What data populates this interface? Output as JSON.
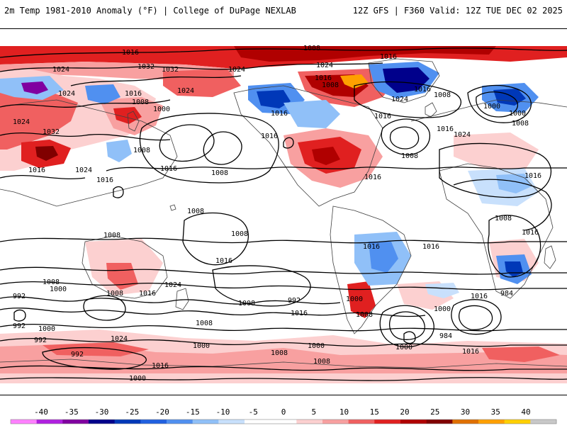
{
  "header": {
    "left": "2m Temp 1981-2010 Anomaly (°F) | College of DuPage NEXLAB",
    "right": "12Z GFS | F360 Valid: 12Z TUE DEC 02 2025"
  },
  "isobar_labels": [
    {
      "id": "iso-1",
      "text": "1016"
    },
    {
      "id": "iso-2",
      "text": "1008"
    },
    {
      "id": "iso-3",
      "text": "1016"
    },
    {
      "id": "iso-4",
      "text": "1024"
    },
    {
      "id": "iso-5",
      "text": "1032"
    },
    {
      "id": "iso-6",
      "text": "1032"
    },
    {
      "id": "iso-7",
      "text": "1024"
    },
    {
      "id": "iso-8",
      "text": "1024"
    },
    {
      "id": "iso-9",
      "text": "1016"
    },
    {
      "id": "iso-10",
      "text": "1008"
    },
    {
      "id": "iso-11",
      "text": "1000"
    },
    {
      "id": "iso-12",
      "text": "1024"
    },
    {
      "id": "iso-13",
      "text": "1024"
    },
    {
      "id": "iso-14",
      "text": "1016"
    },
    {
      "id": "iso-15",
      "text": "1008"
    },
    {
      "id": "iso-16",
      "text": "1016"
    },
    {
      "id": "iso-17",
      "text": "1024"
    },
    {
      "id": "iso-18",
      "text": "1032"
    },
    {
      "id": "iso-19",
      "text": "1024"
    },
    {
      "id": "iso-20",
      "text": "1008"
    },
    {
      "id": "iso-21",
      "text": "1016"
    },
    {
      "id": "iso-22",
      "text": "1024"
    },
    {
      "id": "iso-23",
      "text": "1016"
    },
    {
      "id": "iso-24",
      "text": "1008"
    },
    {
      "id": "iso-25",
      "text": "1016"
    },
    {
      "id": "iso-26",
      "text": "1016"
    },
    {
      "id": "iso-27",
      "text": "1016"
    },
    {
      "id": "iso-28",
      "text": "1024"
    },
    {
      "id": "iso-29",
      "text": "1016"
    },
    {
      "id": "iso-30",
      "text": "1008"
    },
    {
      "id": "iso-31",
      "text": "1016"
    },
    {
      "id": "iso-32",
      "text": "1008"
    },
    {
      "id": "iso-33",
      "text": "1016"
    },
    {
      "id": "iso-34",
      "text": "1000"
    },
    {
      "id": "iso-35",
      "text": "1000"
    },
    {
      "id": "iso-36",
      "text": "1008"
    },
    {
      "id": "iso-37",
      "text": "1016"
    },
    {
      "id": "iso-38",
      "text": "1008"
    },
    {
      "id": "iso-39",
      "text": "1008"
    },
    {
      "id": "iso-40",
      "text": "1008"
    },
    {
      "id": "iso-41",
      "text": "1008"
    },
    {
      "id": "iso-42",
      "text": "1016"
    },
    {
      "id": "iso-43",
      "text": "1016"
    },
    {
      "id": "iso-44",
      "text": "1016"
    },
    {
      "id": "iso-45",
      "text": "1016"
    },
    {
      "id": "iso-46",
      "text": "1008"
    },
    {
      "id": "iso-47",
      "text": "1000"
    },
    {
      "id": "iso-48",
      "text": "992"
    },
    {
      "id": "iso-49",
      "text": "1008"
    },
    {
      "id": "iso-50",
      "text": "1016"
    },
    {
      "id": "iso-51",
      "text": "1024"
    },
    {
      "id": "iso-52",
      "text": "1008"
    },
    {
      "id": "iso-53",
      "text": "992"
    },
    {
      "id": "iso-54",
      "text": "1016"
    },
    {
      "id": "iso-55",
      "text": "1000"
    },
    {
      "id": "iso-56",
      "text": "1008"
    },
    {
      "id": "iso-57",
      "text": "1000"
    },
    {
      "id": "iso-58",
      "text": "1016"
    },
    {
      "id": "iso-59",
      "text": "984"
    },
    {
      "id": "iso-60",
      "text": "992"
    },
    {
      "id": "iso-61",
      "text": "1000"
    },
    {
      "id": "iso-62",
      "text": "992"
    },
    {
      "id": "iso-63",
      "text": "1000"
    },
    {
      "id": "iso-64",
      "text": "1008"
    },
    {
      "id": "iso-65",
      "text": "1024"
    },
    {
      "id": "iso-66",
      "text": "992"
    },
    {
      "id": "iso-67",
      "text": "1000"
    },
    {
      "id": "iso-68",
      "text": "984"
    },
    {
      "id": "iso-69",
      "text": "1000"
    },
    {
      "id": "iso-70",
      "text": "1008"
    },
    {
      "id": "iso-71",
      "text": "1008"
    },
    {
      "id": "iso-72",
      "text": "1016"
    },
    {
      "id": "iso-73",
      "text": "1000"
    },
    {
      "id": "iso-74",
      "text": "1016"
    }
  ],
  "colorbar": {
    "tick_labels": [
      "-40",
      "-35",
      "-30",
      "-25",
      "-20",
      "-15",
      "-10",
      "-5",
      "0",
      "5",
      "10",
      "15",
      "20",
      "25",
      "30",
      "35",
      "40"
    ],
    "colors": [
      "#ff80ff",
      "#b020e0",
      "#8000a0",
      "#00008b",
      "#0038b8",
      "#2060e0",
      "#5090f0",
      "#90c0f8",
      "#c8e0fc",
      "#ffffff",
      "#ffffff",
      "#fcd0d0",
      "#f8a0a0",
      "#f06060",
      "#e02020",
      "#b00000",
      "#800000",
      "#e07000",
      "#ffa000",
      "#ffd000",
      "#c8c8c8"
    ]
  }
}
